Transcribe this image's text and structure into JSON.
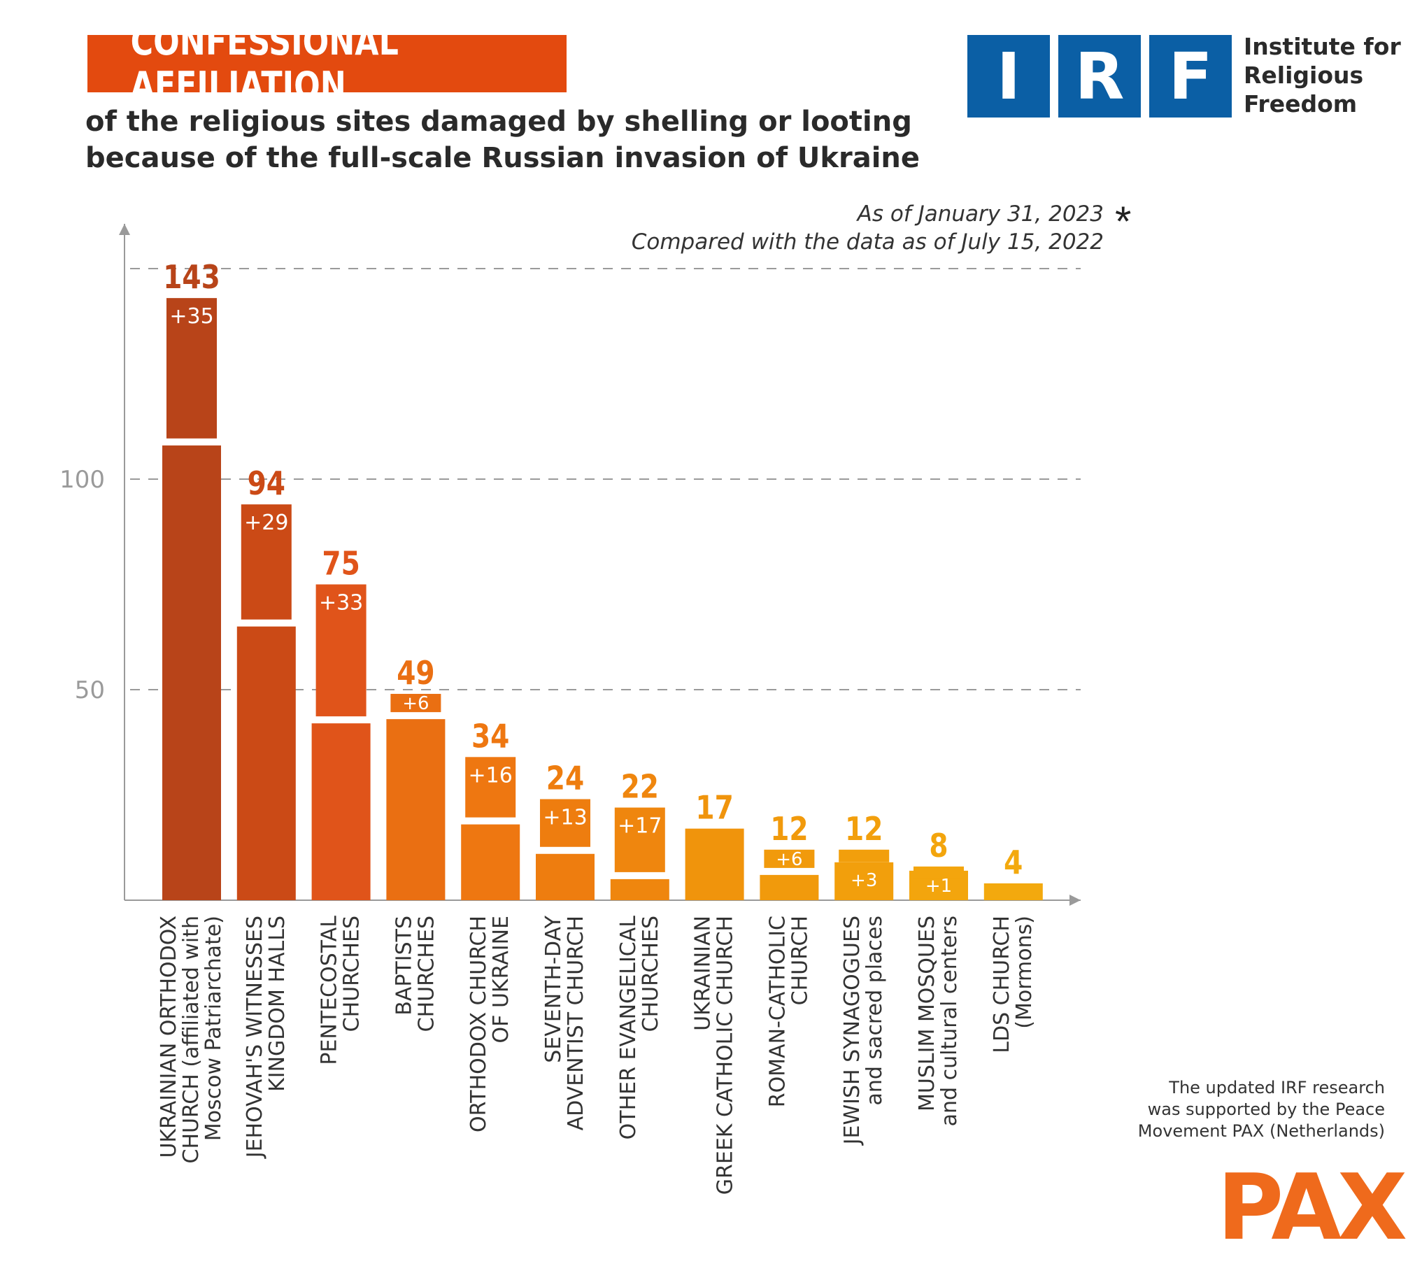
{
  "header": {
    "title": "CONFESSIONAL AFFILIATION",
    "subtitle_line1": "of the religious sites damaged by shelling or looting",
    "subtitle_line2": "because of the full-scale Russian invasion of Ukraine"
  },
  "logo": {
    "letters": [
      "I",
      "R",
      "F"
    ],
    "line1": "Institute for",
    "line2": "Religious",
    "line3": "Freedom",
    "color": "#0b5fa5"
  },
  "notes": {
    "date_line": "As of January 31, 2023",
    "compare_line": "Compared with the data as of July 15, 2022",
    "asterisk": "*"
  },
  "footer": {
    "line1": "The updated IRF research",
    "line2": "was supported by the Peace",
    "line3": "Movement PAX (Netherlands)",
    "pax_logo": "PAX"
  },
  "chart_data": {
    "type": "bar",
    "title": "CONFESSIONAL AFFILIATION",
    "ylim": [
      0,
      150
    ],
    "yticks": [
      50,
      100
    ],
    "grid": "dashed horizontal",
    "categories": [
      [
        "UKRAINIAN ORTHODOX",
        "CHURCH (affiliated with",
        "Moscow Patriarchate)"
      ],
      [
        "JEHOVAH'S WITNESSES",
        "KINGDOM HALLS"
      ],
      [
        "PENTECOSTAL",
        "CHURCHES"
      ],
      [
        "BAPTISTS",
        "CHURCHES"
      ],
      [
        "ORTHODOX CHURCH",
        "OF UKRAINE"
      ],
      [
        "SEVENTH-DAY",
        "ADVENTIST CHURCH"
      ],
      [
        "OTHER EVANGELICAL",
        "CHURCHES"
      ],
      [
        "UKRAINIAN",
        "GREEK CATHOLIC CHURCH"
      ],
      [
        "ROMAN-CATHOLIC",
        "CHURCH"
      ],
      [
        "JEWISH SYNAGOGUES",
        "and sacred places"
      ],
      [
        "MUSLIM MOSQUES",
        "and cultural centers"
      ],
      [
        "LDS CHURCH",
        "(Mormons)"
      ]
    ],
    "totals": [
      143,
      94,
      75,
      49,
      34,
      24,
      22,
      17,
      12,
      12,
      8,
      4
    ],
    "increments": [
      35,
      29,
      33,
      6,
      16,
      13,
      17,
      0,
      6,
      3,
      1,
      0
    ],
    "total_labels": [
      "143",
      "94",
      "75",
      "49",
      "34",
      "24",
      "22",
      "17",
      "12",
      "12",
      "8",
      "4"
    ],
    "increment_labels": [
      "+35",
      "+29",
      "+33",
      "+6",
      "+16",
      "+13",
      "+17",
      "",
      "+6",
      "+3",
      "+1",
      ""
    ],
    "colors": [
      "#b84419",
      "#cb4a16",
      "#e0541a",
      "#ea6f12",
      "#ee7711",
      "#ee7d0f",
      "#ef860e",
      "#f0940c",
      "#f19a0c",
      "#f29f0c",
      "#f3a50d",
      "#f3a90e"
    ],
    "label_colors": [
      "#b84419",
      "#cb4a16",
      "#e0541a",
      "#ea6f12",
      "#ee7711",
      "#ee7d0f",
      "#ef860e",
      "#f0940c",
      "#f19a0c",
      "#f29f0c",
      "#f3a50d",
      "#f3a90e"
    ]
  }
}
